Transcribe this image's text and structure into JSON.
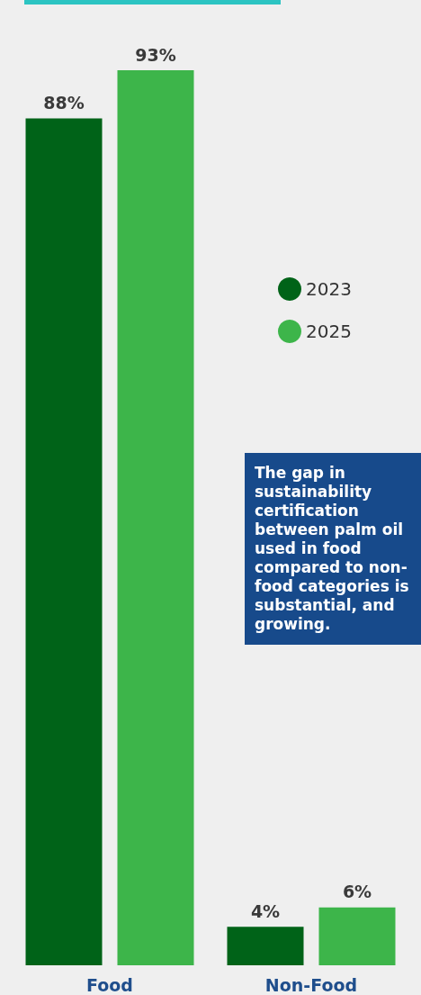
{
  "chart_data": {
    "type": "bar",
    "categories": [
      "Food",
      "Non-Food"
    ],
    "series": [
      {
        "name": "2023",
        "color": "#006318",
        "values": [
          88,
          4
        ],
        "value_labels": [
          "88%",
          "4%"
        ]
      },
      {
        "name": "2025",
        "color": "#3db54a",
        "values": [
          93,
          6
        ],
        "value_labels": [
          "93%",
          "6%"
        ]
      }
    ],
    "legend": "right",
    "annotations": [
      "The gap in sustainability certification between palm oil used in food compared to non-food categories is substantial, and growing."
    ]
  }
}
